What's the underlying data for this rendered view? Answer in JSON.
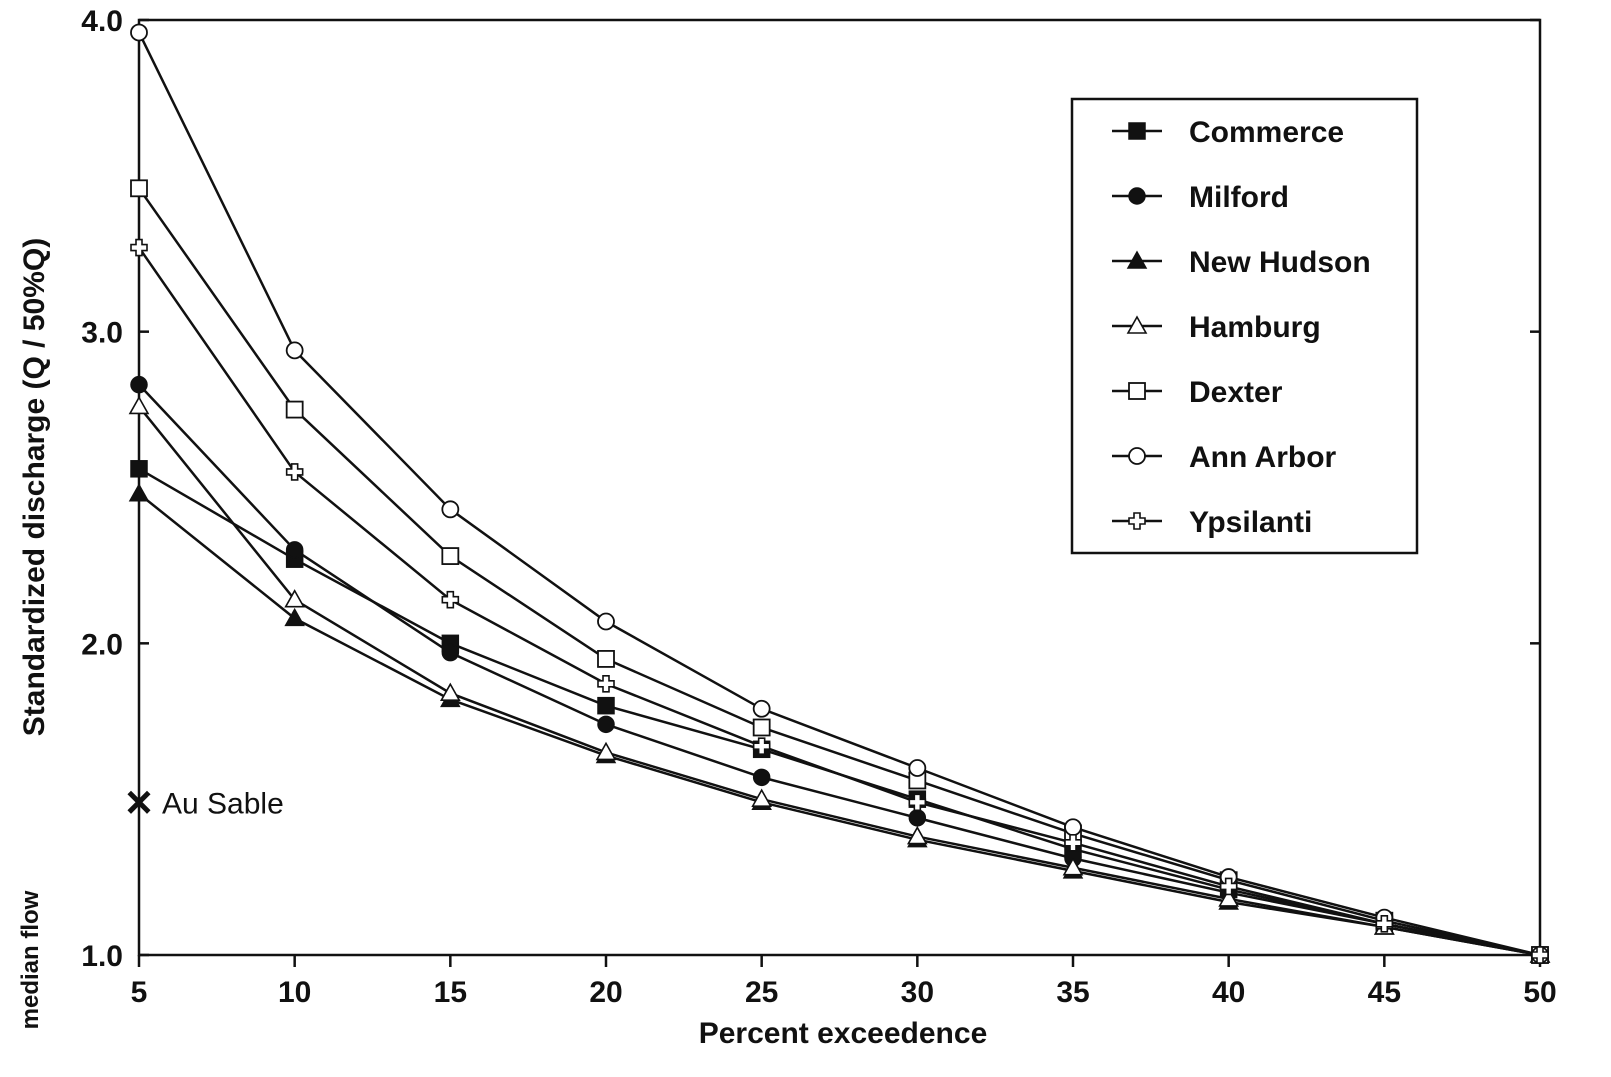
{
  "chart_data": {
    "type": "line",
    "xlabel": "Percent exceedence",
    "ylabel": "Standardized discharge (Q / 50%Q)",
    "side_label": "median flow",
    "xlim": [
      5,
      50
    ],
    "ylim": [
      1.0,
      4.0
    ],
    "x": [
      5,
      10,
      15,
      20,
      25,
      30,
      35,
      40,
      45,
      50
    ],
    "x_tick_labels": [
      "5",
      "10",
      "15",
      "20",
      "25",
      "30",
      "35",
      "40",
      "45",
      "50"
    ],
    "y_ticks": [
      1.0,
      2.0,
      3.0,
      4.0
    ],
    "y_tick_labels": [
      "1.0",
      "2.0",
      "3.0",
      "4.0"
    ],
    "grid": false,
    "legend_position": "top-right",
    "series": [
      {
        "name": "Commerce",
        "marker": "square-filled",
        "values": [
          2.56,
          2.27,
          2.0,
          1.8,
          1.66,
          1.5,
          1.34,
          1.21,
          1.1,
          1.0
        ]
      },
      {
        "name": "Milford",
        "marker": "circle-filled",
        "values": [
          2.83,
          2.3,
          1.97,
          1.74,
          1.57,
          1.44,
          1.31,
          1.2,
          1.1,
          1.0
        ]
      },
      {
        "name": "New Hudson",
        "marker": "triangle-filled",
        "values": [
          2.48,
          2.08,
          1.82,
          1.64,
          1.49,
          1.37,
          1.27,
          1.17,
          1.09,
          1.0
        ]
      },
      {
        "name": "Hamburg",
        "marker": "triangle-open",
        "values": [
          2.76,
          2.14,
          1.84,
          1.65,
          1.5,
          1.38,
          1.28,
          1.18,
          1.09,
          1.0
        ]
      },
      {
        "name": "Dexter",
        "marker": "square-open",
        "values": [
          3.46,
          2.75,
          2.28,
          1.95,
          1.73,
          1.56,
          1.39,
          1.24,
          1.11,
          1.0
        ]
      },
      {
        "name": "Ann Arbor",
        "marker": "circle-open",
        "values": [
          3.96,
          2.94,
          2.43,
          2.07,
          1.79,
          1.6,
          1.41,
          1.25,
          1.12,
          1.0
        ]
      },
      {
        "name": "Ypsilanti",
        "marker": "plus",
        "values": [
          3.27,
          2.55,
          2.14,
          1.87,
          1.67,
          1.49,
          1.36,
          1.22,
          1.1,
          1.0
        ]
      }
    ],
    "annotations": [
      {
        "label": "Au Sable",
        "marker": "x",
        "x": 5,
        "y": 1.49
      }
    ]
  }
}
